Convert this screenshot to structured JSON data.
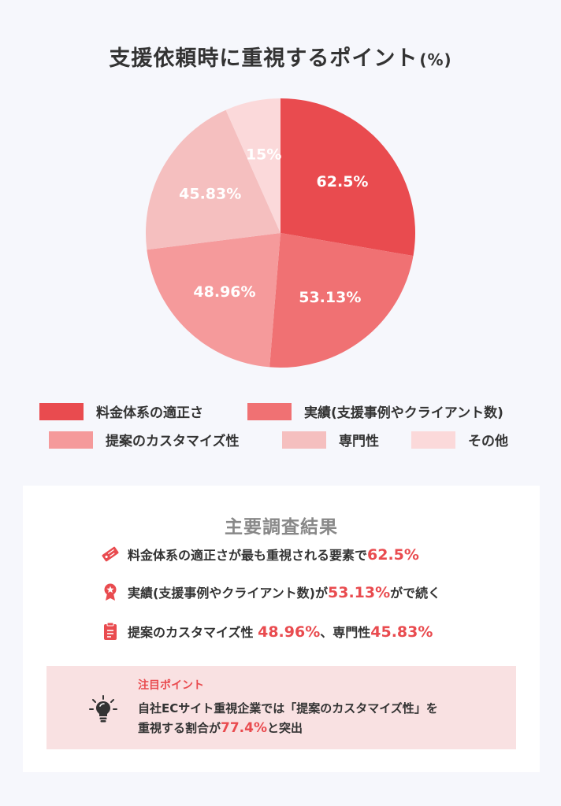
{
  "header": {
    "title": "支援依頼時に重視するポイント",
    "unit": "(%)"
  },
  "chart_data": {
    "type": "pie",
    "title": "支援依頼時に重視するポイント(%)",
    "categories": [
      "料金体系の適正さ",
      "実績(支援事例やクライアント数)",
      "提案のカスタマイズ性",
      "専門性",
      "その他"
    ],
    "values": [
      62.5,
      53.13,
      48.96,
      45.83,
      15
    ],
    "value_labels": [
      "62.5%",
      "53.13%",
      "48.96%",
      "45.83%",
      "15%"
    ],
    "colors": [
      "#e94b4f",
      "#f07173",
      "#f59a9b",
      "#f5bfbf",
      "#fbd9da"
    ],
    "legend_position": "bottom"
  },
  "summary": {
    "title": "主要調査結果",
    "findings": [
      {
        "icon": "price-tag-icon",
        "text": "料金体系の適正さが最も重視される要素で",
        "value": "62.5%",
        "suffix": ""
      },
      {
        "icon": "award-badge-icon",
        "text": "実績(支援事例やクライアント数)が",
        "value": "53.13%",
        "suffix": "がで続く"
      },
      {
        "icon": "clipboard-icon",
        "text": "提案のカスタマイズ性",
        "value": "48.96%",
        "suffix": "、専門性",
        "value2": "45.83%"
      }
    ],
    "note": {
      "icon": "lightbulb-icon",
      "heading": "注目ポイント",
      "line1": "自社ECサイト重視企業では「提案のカスタマイズ性」を",
      "line2_prefix": "重視する割合が",
      "line2_value": "77.4%",
      "line2_suffix": "と突出"
    }
  }
}
